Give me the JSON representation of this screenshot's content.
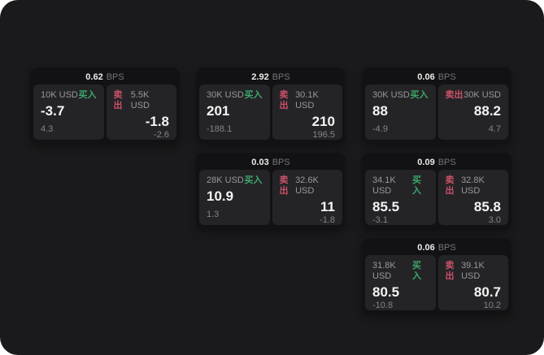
{
  "unit_label": "BPS",
  "buy_label": "买入",
  "sell_label": "卖出",
  "colors": {
    "background": "#1a1a1c",
    "card": "#121214",
    "panel": "#242427",
    "buy_accent": "#3ca86b",
    "sell_accent": "#cb5168"
  },
  "cards": [
    {
      "bps": "0.62",
      "buy": {
        "amount": "10K USD",
        "value": "-3.7",
        "delta": "4.3"
      },
      "sell": {
        "amount": "5.5K USD",
        "value": "-1.8",
        "delta": "-2.6"
      }
    },
    {
      "bps": "2.92",
      "buy": {
        "amount": "30K USD",
        "value": "201",
        "delta": "-188.1"
      },
      "sell": {
        "amount": "30.1K USD",
        "value": "210",
        "delta": "196.5"
      }
    },
    {
      "bps": "0.06",
      "buy": {
        "amount": "30K USD",
        "value": "88",
        "delta": "-4.9"
      },
      "sell": {
        "amount": "30K USD",
        "value": "88.2",
        "delta": "4.7"
      }
    },
    {
      "bps": "0.03",
      "buy": {
        "amount": "28K USD",
        "value": "10.9",
        "delta": "1.3"
      },
      "sell": {
        "amount": "32.6K USD",
        "value": "11",
        "delta": "-1.8"
      }
    },
    {
      "bps": "0.09",
      "buy": {
        "amount": "34.1K USD",
        "value": "85.5",
        "delta": "-3.1"
      },
      "sell": {
        "amount": "32.8K USD",
        "value": "85.8",
        "delta": "3.0"
      }
    },
    {
      "bps": "0.06",
      "buy": {
        "amount": "31.8K USD",
        "value": "80.5",
        "delta": "-10.8"
      },
      "sell": {
        "amount": "39.1K USD",
        "value": "80.7",
        "delta": "10.2"
      }
    }
  ]
}
